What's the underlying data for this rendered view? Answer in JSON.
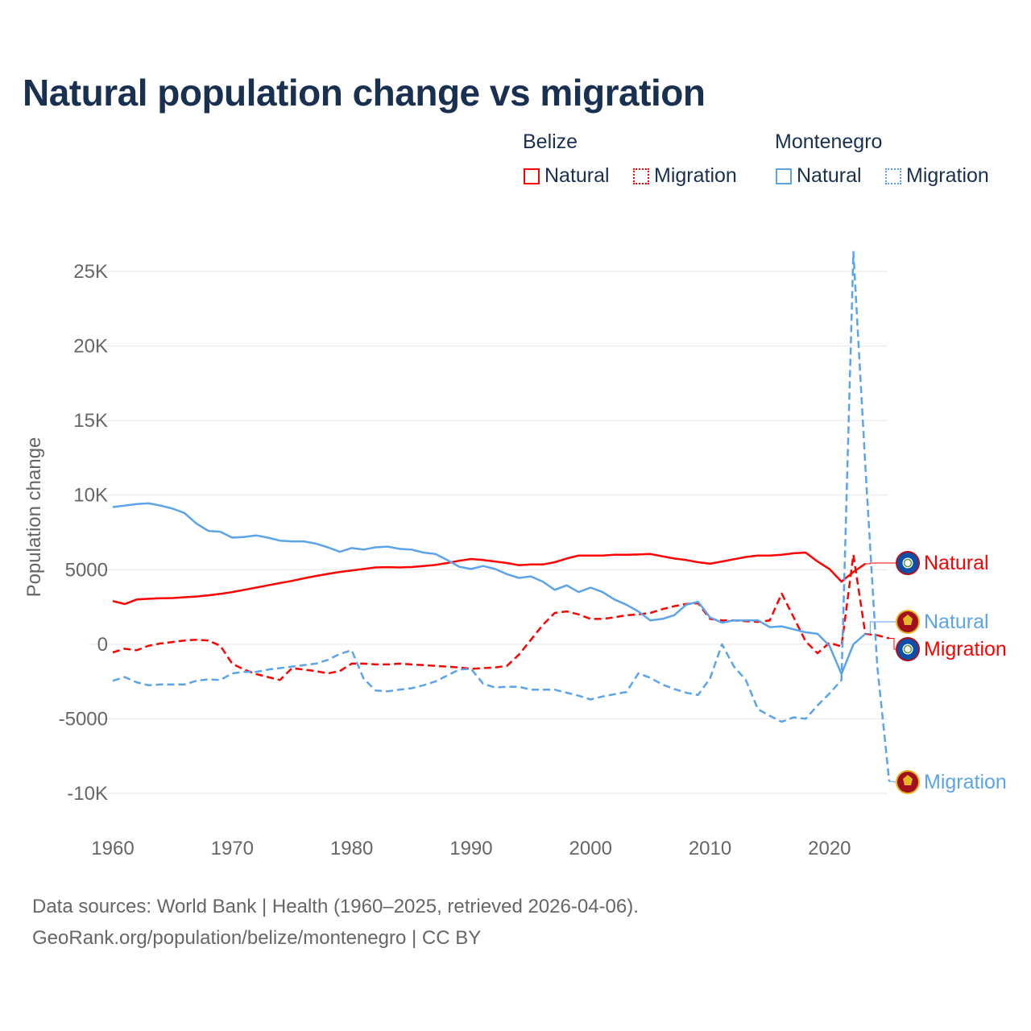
{
  "title": "Natural population change vs migration",
  "legend": {
    "groups": [
      {
        "name": "Belize",
        "color": "#ff0000",
        "items": [
          "Natural",
          "Migration"
        ]
      },
      {
        "name": "Montenegro",
        "color": "#5ba3ea",
        "items": [
          "Natural",
          "Migration"
        ]
      }
    ]
  },
  "footer": {
    "line1": "Data sources: World Bank | Health (1960–2025, retrieved 2026-04-06).",
    "line2": "GeoRank.org/population/belize/montenegro | CC BY"
  },
  "chart_data": {
    "type": "line",
    "title": "Natural population change vs migration",
    "xlabel": "",
    "ylabel": "Population change",
    "xlim": [
      1960,
      2025
    ],
    "ylim": [
      -10000,
      25000
    ],
    "grid": true,
    "legend_position": "top-right",
    "x_ticks": [
      1960,
      1970,
      1980,
      1990,
      2000,
      2010,
      2020
    ],
    "x_tick_labels": [
      "1960",
      "1970",
      "1980",
      "1990",
      "2000",
      "2010",
      "2020"
    ],
    "y_ticks": [
      -10000,
      -5000,
      0,
      5000,
      10000,
      15000,
      20000,
      25000
    ],
    "y_tick_labels": [
      "-10K",
      "-5000",
      "0",
      "5000",
      "10K",
      "15K",
      "20K",
      "25K"
    ],
    "start_year": 1960,
    "series": [
      {
        "name": "Belize Natural",
        "end_label": "Natural",
        "country": "Belize",
        "color": "#ff0000",
        "dash": false,
        "values": [
          2900,
          2700,
          3000,
          3050,
          3080,
          3100,
          3150,
          3200,
          3280,
          3380,
          3500,
          3650,
          3800,
          3950,
          4100,
          4250,
          4420,
          4580,
          4720,
          4850,
          4950,
          5050,
          5150,
          5170,
          5150,
          5180,
          5250,
          5320,
          5450,
          5600,
          5720,
          5650,
          5550,
          5450,
          5300,
          5350,
          5350,
          5500,
          5750,
          5950,
          5950,
          5950,
          6000,
          6000,
          6020,
          6050,
          5900,
          5750,
          5650,
          5500,
          5400,
          5550,
          5700,
          5850,
          5950,
          5950,
          6000,
          6100,
          6150,
          5550,
          5050,
          4200,
          4850,
          5400
        ]
      },
      {
        "name": "Belize Migration",
        "end_label": "Migration",
        "country": "Belize",
        "color": "#ff0000",
        "dash": true,
        "values": [
          -550,
          -300,
          -400,
          -100,
          50,
          150,
          250,
          300,
          250,
          -100,
          -1300,
          -1700,
          -2000,
          -2200,
          -2400,
          -1600,
          -1700,
          -1800,
          -1950,
          -1800,
          -1300,
          -1300,
          -1350,
          -1350,
          -1300,
          -1350,
          -1400,
          -1450,
          -1500,
          -1550,
          -1650,
          -1600,
          -1550,
          -1450,
          -700,
          300,
          1300,
          2100,
          2200,
          2000,
          1700,
          1700,
          1800,
          1950,
          2000,
          2100,
          2350,
          2550,
          2700,
          2750,
          1700,
          1600,
          1600,
          1550,
          1500,
          1600,
          3400,
          1800,
          200,
          -600,
          100,
          -150,
          6000,
          700,
          600,
          400
        ]
      },
      {
        "name": "Montenegro Natural",
        "end_label": "Natural",
        "country": "Montenegro",
        "color": "#5ba3ea",
        "dash": false,
        "values": [
          9200,
          9300,
          9400,
          9450,
          9300,
          9100,
          8800,
          8100,
          7600,
          7550,
          7150,
          7200,
          7300,
          7150,
          6950,
          6900,
          6900,
          6750,
          6500,
          6200,
          6450,
          6350,
          6500,
          6550,
          6400,
          6350,
          6150,
          6050,
          5650,
          5200,
          5050,
          5250,
          5050,
          4700,
          4450,
          4550,
          4200,
          3650,
          3950,
          3500,
          3800,
          3500,
          3000,
          2650,
          2200,
          1600,
          1700,
          1950,
          2650,
          2850,
          1800,
          1450,
          1600,
          1600,
          1600,
          1150,
          1200,
          1000,
          800,
          700,
          -100,
          -2000,
          0,
          700
        ]
      },
      {
        "name": "Montenegro Migration",
        "end_label": "Migration",
        "country": "Montenegro",
        "color": "#5ba3ea",
        "dash": true,
        "values": [
          -2450,
          -2200,
          -2550,
          -2750,
          -2700,
          -2700,
          -2700,
          -2450,
          -2350,
          -2400,
          -1950,
          -1850,
          -1850,
          -1700,
          -1600,
          -1500,
          -1400,
          -1300,
          -1050,
          -650,
          -400,
          -2300,
          -3100,
          -3150,
          -3050,
          -2950,
          -2750,
          -2500,
          -2100,
          -1700,
          -1650,
          -2650,
          -2900,
          -2850,
          -2850,
          -3050,
          -3050,
          -3050,
          -3250,
          -3450,
          -3700,
          -3500,
          -3350,
          -3200,
          -1950,
          -2250,
          -2700,
          -3000,
          -3250,
          -3400,
          -2300,
          0,
          -1500,
          -2400,
          -4350,
          -4800,
          -5200,
          -4900,
          -5000,
          -4100,
          -3300,
          -2400,
          26300,
          12000,
          -1500,
          -9200
        ]
      }
    ]
  }
}
